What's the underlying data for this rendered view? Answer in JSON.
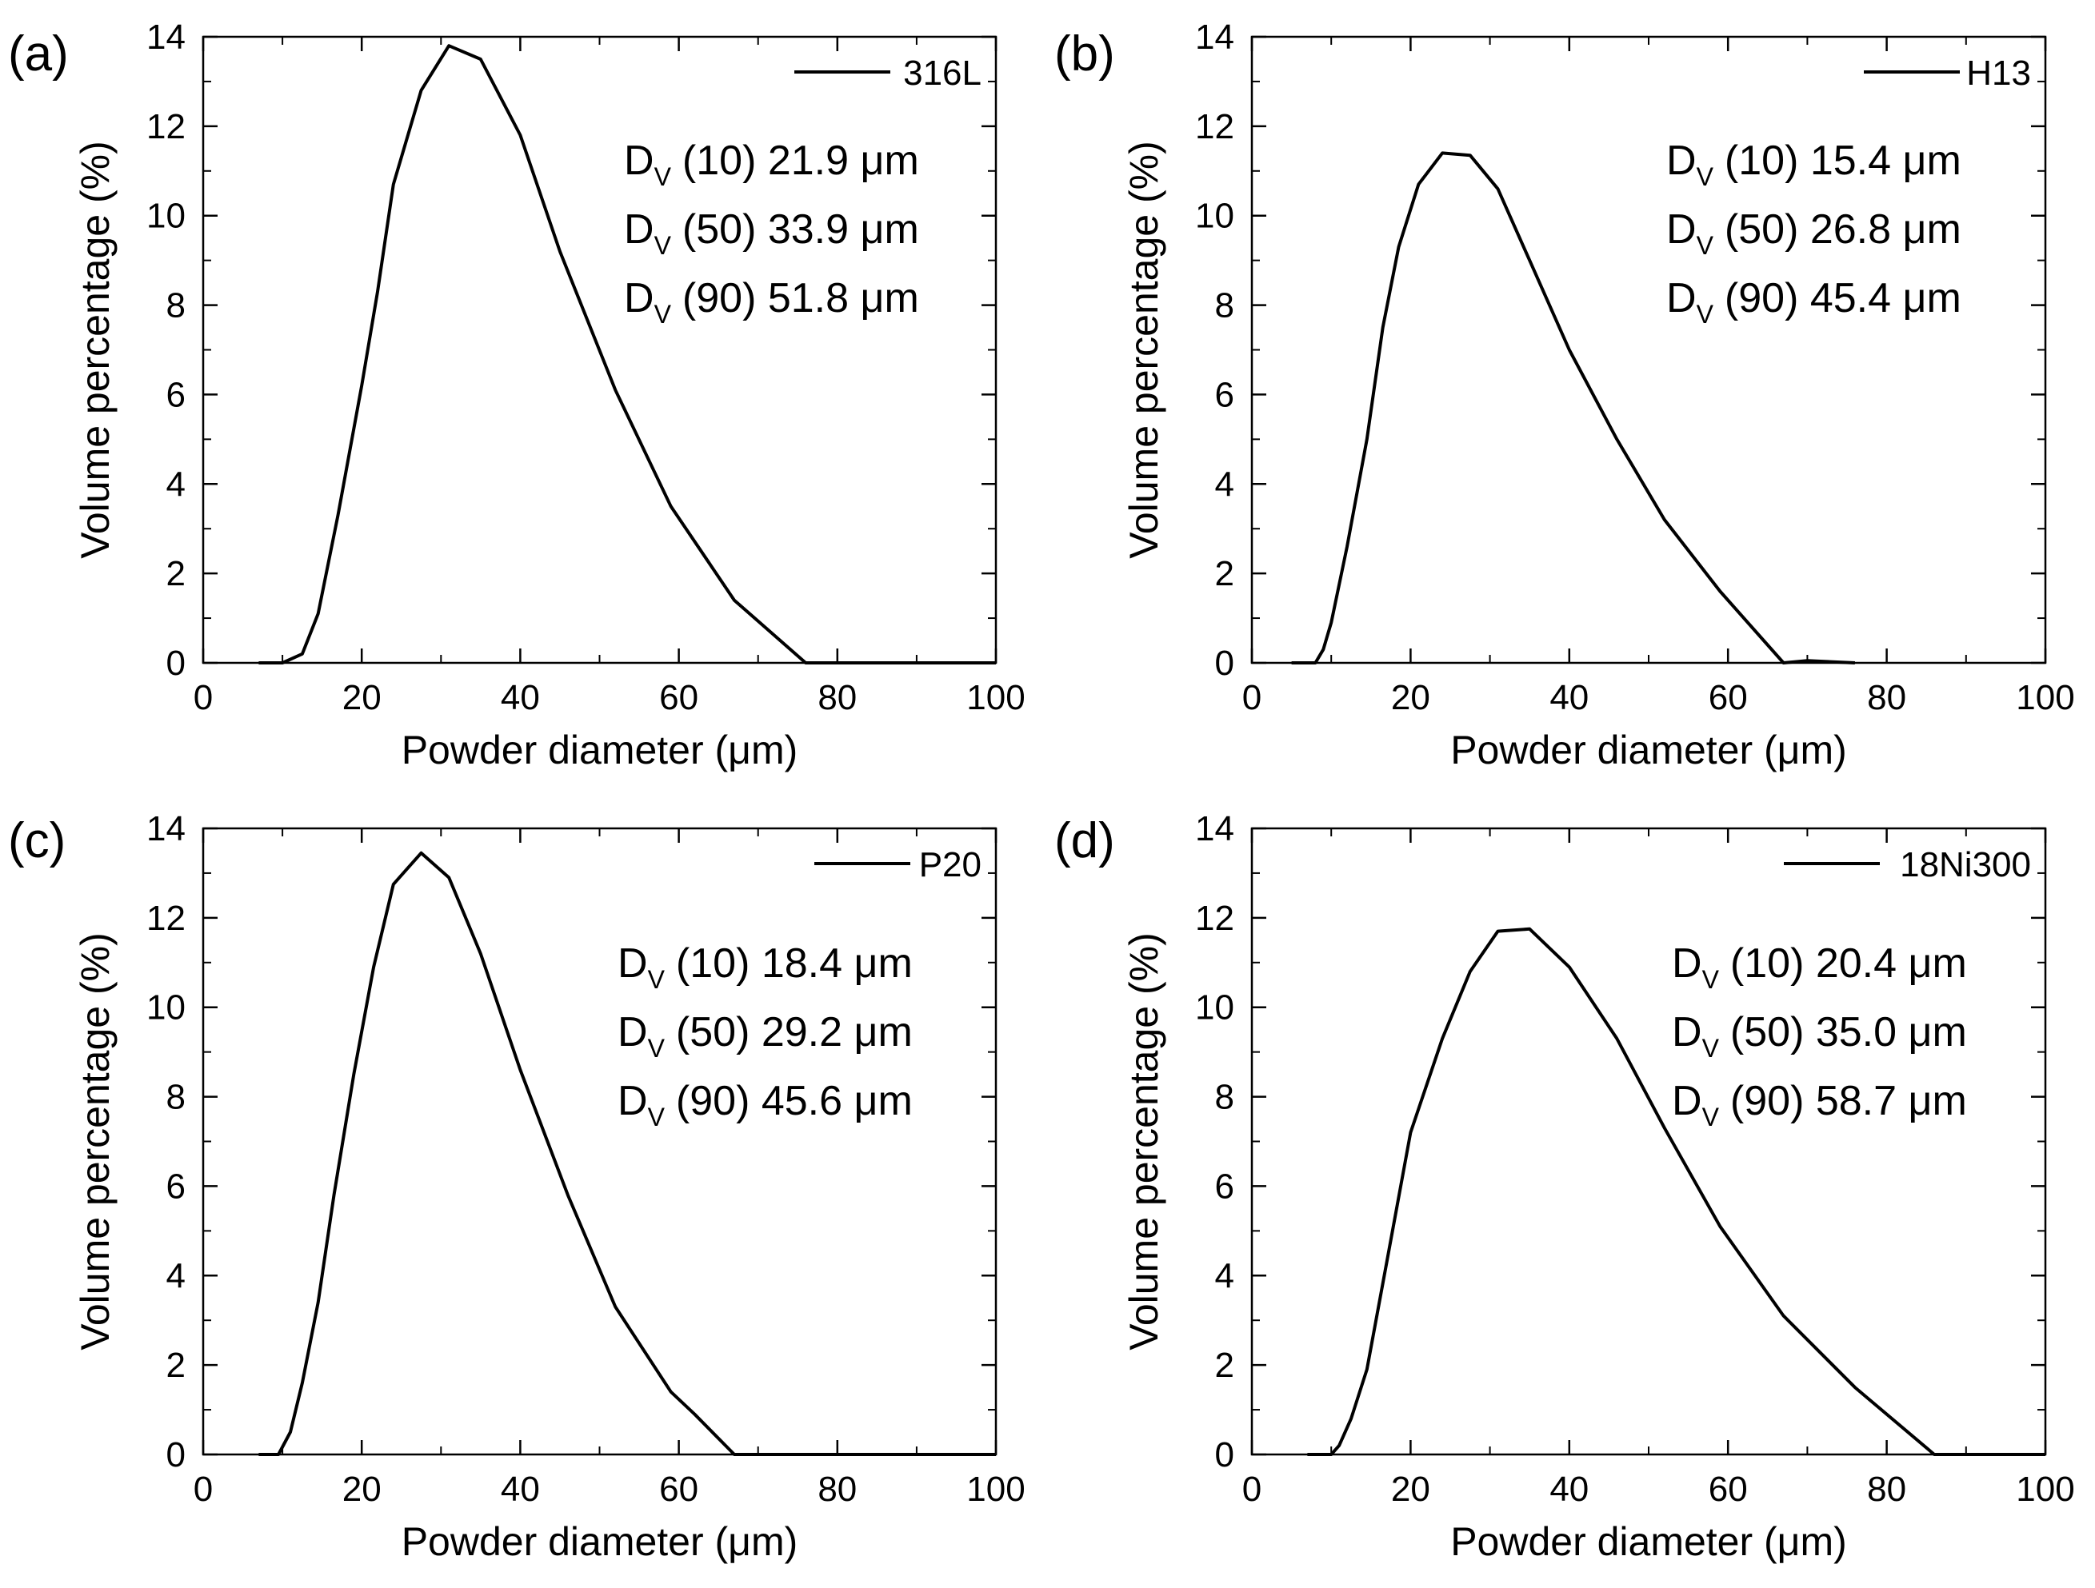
{
  "chart_data": [
    {
      "type": "line",
      "panel_label": "(a)",
      "legend": "316L",
      "xlabel": "Powder diameter (μm)",
      "ylabel": "Volume percentage (%)",
      "xlim": [
        0,
        100
      ],
      "ylim": [
        0,
        14
      ],
      "xticks": [
        "0",
        "20",
        "40",
        "60",
        "80",
        "100"
      ],
      "yticks": [
        "0",
        "2",
        "4",
        "6",
        "8",
        "10",
        "12",
        "14"
      ],
      "legend_position": "top-right",
      "stats": [
        {
          "d": "D",
          "sub": "V",
          "pct": "(10)",
          "value": "21.9 μm"
        },
        {
          "d": "D",
          "sub": "V",
          "pct": "(50)",
          "value": "33.9 μm"
        },
        {
          "d": "D",
          "sub": "V",
          "pct": "(90)",
          "value": "51.8 μm"
        }
      ],
      "x": [
        7,
        10,
        12.5,
        14.5,
        17,
        20,
        22,
        24,
        27.5,
        31,
        35,
        40,
        45,
        52,
        59,
        67,
        76,
        85,
        100
      ],
      "y": [
        0,
        0,
        0.2,
        1.1,
        3.3,
        6.2,
        8.3,
        10.7,
        12.8,
        13.8,
        13.5,
        11.8,
        9.2,
        6.1,
        3.5,
        1.4,
        0,
        0,
        0
      ]
    },
    {
      "type": "line",
      "panel_label": "(b)",
      "legend": "H13",
      "xlabel": "Powder diameter (μm)",
      "ylabel": "Volume percentage (%)",
      "xlim": [
        0,
        100
      ],
      "ylim": [
        0,
        14
      ],
      "xticks": [
        "0",
        "20",
        "40",
        "60",
        "80",
        "100"
      ],
      "yticks": [
        "0",
        "2",
        "4",
        "6",
        "8",
        "10",
        "12",
        "14"
      ],
      "legend_position": "top-right",
      "stats": [
        {
          "d": "D",
          "sub": "V",
          "pct": "(10)",
          "value": "15.4 μm"
        },
        {
          "d": "D",
          "sub": "V",
          "pct": "(50)",
          "value": "26.8 μm"
        },
        {
          "d": "D",
          "sub": "V",
          "pct": "(90)",
          "value": "45.4 μm"
        }
      ],
      "x": [
        5,
        8,
        9,
        10,
        12,
        14.5,
        16.5,
        18.5,
        21,
        24,
        27.5,
        31,
        35,
        40,
        46,
        52,
        59,
        67,
        70,
        76
      ],
      "y": [
        0,
        0,
        0.3,
        0.9,
        2.6,
        5.0,
        7.5,
        9.3,
        10.7,
        11.4,
        11.35,
        10.6,
        9.0,
        7.0,
        5.0,
        3.2,
        1.6,
        0,
        0.05,
        0
      ]
    },
    {
      "type": "line",
      "panel_label": "(c)",
      "legend": "P20",
      "xlabel": "Powder diameter (μm)",
      "ylabel": "Volume percentage (%)",
      "xlim": [
        0,
        100
      ],
      "ylim": [
        0,
        14
      ],
      "xticks": [
        "0",
        "20",
        "40",
        "60",
        "80",
        "100"
      ],
      "yticks": [
        "0",
        "2",
        "4",
        "6",
        "8",
        "10",
        "12",
        "14"
      ],
      "legend_position": "top-right",
      "stats": [
        {
          "d": "D",
          "sub": "V",
          "pct": "(10)",
          "value": "18.4 μm"
        },
        {
          "d": "D",
          "sub": "V",
          "pct": "(50)",
          "value": "29.2 μm"
        },
        {
          "d": "D",
          "sub": "V",
          "pct": "(90)",
          "value": "45.6 μm"
        }
      ],
      "x": [
        7,
        9.5,
        11,
        12.5,
        14.5,
        16.5,
        19,
        21.5,
        24,
        27.5,
        31,
        35,
        40,
        46,
        52,
        59,
        62,
        67,
        76,
        100
      ],
      "y": [
        0,
        0,
        0.5,
        1.6,
        3.4,
        5.8,
        8.5,
        10.9,
        12.75,
        13.45,
        12.9,
        11.2,
        8.6,
        5.8,
        3.3,
        1.4,
        0.9,
        0,
        0,
        0
      ]
    },
    {
      "type": "line",
      "panel_label": "(d)",
      "legend": "18Ni300",
      "xlabel": "Powder diameter (μm)",
      "ylabel": "Volume percentage (%)",
      "xlim": [
        0,
        100
      ],
      "ylim": [
        0,
        14
      ],
      "xticks": [
        "0",
        "20",
        "40",
        "60",
        "80",
        "100"
      ],
      "yticks": [
        "0",
        "2",
        "4",
        "6",
        "8",
        "10",
        "12",
        "14"
      ],
      "legend_position": "top-right",
      "stats": [
        {
          "d": "D",
          "sub": "V",
          "pct": "(10)",
          "value": "20.4 μm"
        },
        {
          "d": "D",
          "sub": "V",
          "pct": "(50)",
          "value": "35.0 μm"
        },
        {
          "d": "D",
          "sub": "V",
          "pct": "(90)",
          "value": "58.7 μm"
        }
      ],
      "x": [
        7,
        10,
        11,
        12.5,
        14.5,
        17,
        20,
        24,
        27.5,
        31,
        35,
        40,
        46,
        52,
        59,
        67,
        76,
        86,
        90,
        100
      ],
      "y": [
        0,
        0,
        0.2,
        0.8,
        1.9,
        4.3,
        7.2,
        9.3,
        10.8,
        11.7,
        11.75,
        10.9,
        9.3,
        7.3,
        5.1,
        3.1,
        1.5,
        0,
        0,
        0
      ]
    }
  ]
}
